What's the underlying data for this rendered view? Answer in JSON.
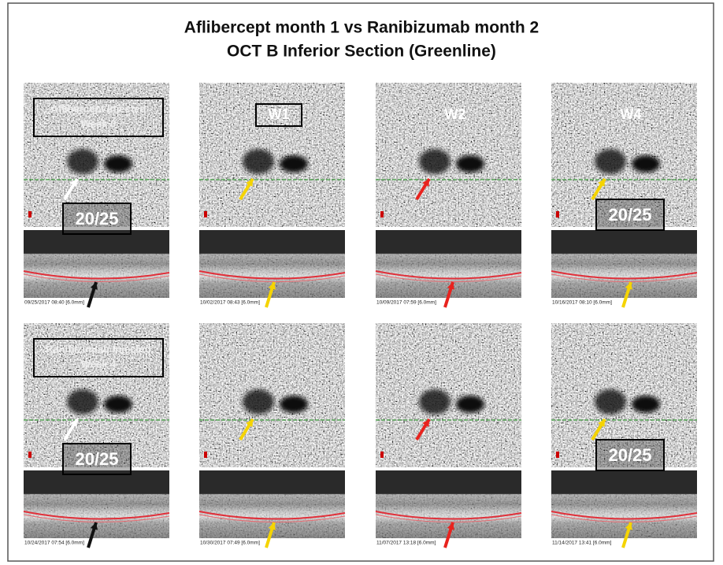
{
  "header": {
    "title_line1": "Aflibercept month 1 vs Ranibizumab month 2",
    "title_line2": "OCT B Inferior Section (Greenline)"
  },
  "rows": [
    {
      "panels": [
        {
          "label_lines": [
            "Aflibercept Injected",
            "Week 0"
          ],
          "acuity": "20/25",
          "timestamp": "09/25/2017 08:40 [6.0mm]"
        },
        {
          "label_lines": [
            "W1"
          ],
          "timestamp": "10/02/2017 08:43 [6.0mm]"
        },
        {
          "label_lines": [
            "W2"
          ],
          "timestamp": "10/09/2017 07:59 [6.0mm]"
        },
        {
          "label_lines": [
            "W4"
          ],
          "acuity": "20/25",
          "timestamp": "10/16/2017 08:10 [6.0mm]"
        }
      ]
    },
    {
      "panels": [
        {
          "label_lines": [
            "Ranibizumab Injected",
            "Week 4"
          ],
          "acuity": "20/25",
          "timestamp": "10/24/2017 07:54 [6.0mm]"
        },
        {
          "timestamp": "10/30/2017 07:49 [6.0mm]"
        },
        {
          "timestamp": "11/07/2017 13:18 [6.0mm]"
        },
        {
          "acuity": "20/25",
          "timestamp": "11/14/2017 13:41 [6.0mm]"
        }
      ]
    }
  ]
}
